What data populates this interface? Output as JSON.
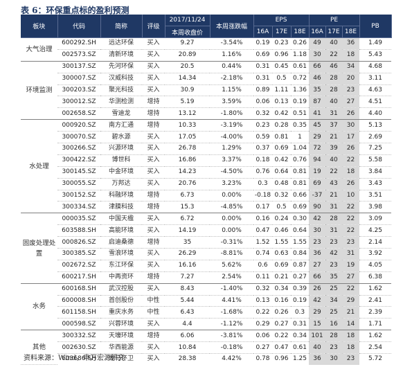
{
  "title": "表 6：环保重点标的盈利预测",
  "source": "资料来源：Wind，申万宏源研究",
  "header": {
    "sector": "板块",
    "code": "代码",
    "name": "简称",
    "rating": "评级",
    "date": "2017/11/24",
    "close": "本周收盘价",
    "weekly": "本周涨跌幅",
    "eps": "EPS",
    "pe": "PE",
    "pb": "PB",
    "y16": "16A",
    "y17": "17E",
    "y18": "18E"
  },
  "groups": [
    {
      "sector": "大气治理",
      "rows": [
        {
          "code": "600292.SH",
          "name": "远达环保",
          "rating": "买入",
          "close": "9.27",
          "chg": "-3.54%",
          "eps16": "0.19",
          "eps17": "0.23",
          "eps18": "0.26",
          "pe16": "49",
          "pe17": "40",
          "pe18": "36",
          "pb": "1.49"
        },
        {
          "code": "002573.SZ",
          "name": "清新环境",
          "rating": "买入",
          "close": "20.89",
          "chg": "1.16%",
          "eps16": "0.69",
          "eps17": "0.96",
          "eps18": "1.18",
          "pe16": "30",
          "pe17": "22",
          "pe18": "18",
          "pb": "5.43"
        }
      ]
    },
    {
      "sector": "环境监测",
      "rows": [
        {
          "code": "300137.SZ",
          "name": "先河环保",
          "rating": "买入",
          "close": "20.5",
          "chg": "0.44%",
          "eps16": "0.31",
          "eps17": "0.45",
          "eps18": "0.61",
          "pe16": "66",
          "pe17": "46",
          "pe18": "34",
          "pb": "4.68"
        },
        {
          "code": "300007.SZ",
          "name": "汉威科技",
          "rating": "买入",
          "close": "14.34",
          "chg": "-2.18%",
          "eps16": "0.31",
          "eps17": "0.5",
          "eps18": "0.72",
          "pe16": "46",
          "pe17": "28",
          "pe18": "20",
          "pb": "3.11"
        },
        {
          "code": "300203.SZ",
          "name": "聚光科技",
          "rating": "买入",
          "close": "30.9",
          "chg": "1.15%",
          "eps16": "0.89",
          "eps17": "1.11",
          "eps18": "1.36",
          "pe16": "35",
          "pe17": "28",
          "pe18": "23",
          "pb": "4.63"
        },
        {
          "code": "300012.SZ",
          "name": "华测检测",
          "rating": "增持",
          "close": "5.19",
          "chg": "3.59%",
          "eps16": "0.06",
          "eps17": "0.13",
          "eps18": "0.19",
          "pe16": "87",
          "pe17": "40",
          "pe18": "27",
          "pb": "4.51"
        },
        {
          "code": "002658.SZ",
          "name": "雪迪龙",
          "rating": "增持",
          "close": "13.12",
          "chg": "-1.80%",
          "eps16": "0.32",
          "eps17": "0.42",
          "eps18": "0.51",
          "pe16": "41",
          "pe17": "31",
          "pe18": "26",
          "pb": "4.40"
        }
      ]
    },
    {
      "sector": "水处理",
      "rows": [
        {
          "code": "000920.SZ",
          "name": "南方汇通",
          "rating": "增持",
          "close": "10.33",
          "chg": "-3.19%",
          "eps16": "0.23",
          "eps17": "0.28",
          "eps18": "0.35",
          "pe16": "45",
          "pe17": "37",
          "pe18": "30",
          "pb": "5.13"
        },
        {
          "code": "300070.SZ",
          "name": "碧水源",
          "rating": "买入",
          "close": "17.05",
          "chg": "-4.00%",
          "eps16": "0.59",
          "eps17": "0.81",
          "eps18": "1",
          "pe16": "29",
          "pe17": "21",
          "pe18": "17",
          "pb": "2.69"
        },
        {
          "code": "300266.SZ",
          "name": "兴源环境",
          "rating": "买入",
          "close": "26.78",
          "chg": "1.29%",
          "eps16": "0.37",
          "eps17": "0.69",
          "eps18": "1.04",
          "pe16": "72",
          "pe17": "39",
          "pe18": "26",
          "pb": "7.25"
        },
        {
          "code": "300422.SZ",
          "name": "博世科",
          "rating": "买入",
          "close": "16.86",
          "chg": "3.37%",
          "eps16": "0.18",
          "eps17": "0.42",
          "eps18": "0.76",
          "pe16": "94",
          "pe17": "40",
          "pe18": "22",
          "pb": "5.58"
        },
        {
          "code": "300145.SZ",
          "name": "中金环境",
          "rating": "买入",
          "close": "14.23",
          "chg": "-4.50%",
          "eps16": "0.76",
          "eps17": "0.64",
          "eps18": "0.81",
          "pe16": "19",
          "pe17": "22",
          "pe18": "18",
          "pb": "3.84"
        },
        {
          "code": "300055.SZ",
          "name": "万邦达",
          "rating": "买入",
          "close": "20.76",
          "chg": "3.23%",
          "eps16": "0.3",
          "eps17": "0.48",
          "eps18": "0.81",
          "pe16": "69",
          "pe17": "43",
          "pe18": "26",
          "pb": "3.43"
        },
        {
          "code": "300152.SZ",
          "name": "科融环境",
          "rating": "增持",
          "close": "6.73",
          "chg": "0.00%",
          "eps16": "-0.18",
          "eps17": "0.32",
          "eps18": "0.66",
          "pe16": "-37",
          "pe17": "21",
          "pe18": "10",
          "pb": "3.51"
        },
        {
          "code": "300334.SZ",
          "name": "津膜科技",
          "rating": "增持",
          "close": "15.3",
          "chg": "-4.85%",
          "eps16": "0.17",
          "eps17": "0.5",
          "eps18": "0.69",
          "pe16": "90",
          "pe17": "31",
          "pe18": "22",
          "pb": "3.98"
        }
      ]
    },
    {
      "sector": "固废处理处置",
      "rows": [
        {
          "code": "000035.SZ",
          "name": "中国天楹",
          "rating": "买入",
          "close": "6.72",
          "chg": "0.00%",
          "eps16": "0.16",
          "eps17": "0.24",
          "eps18": "0.30",
          "pe16": "42",
          "pe17": "28",
          "pe18": "22",
          "pb": "3.09"
        },
        {
          "code": "603588.SH",
          "name": "高能环境",
          "rating": "买入",
          "close": "14.19",
          "chg": "0.00%",
          "eps16": "0.47",
          "eps17": "0.46",
          "eps18": "0.64",
          "pe16": "30",
          "pe17": "31",
          "pe18": "22",
          "pb": "4.25"
        },
        {
          "code": "000826.SZ",
          "name": "启迪桑德",
          "rating": "增持",
          "close": "35",
          "chg": "-0.31%",
          "eps16": "1.52",
          "eps17": "1.55",
          "eps18": "1.55",
          "pe16": "23",
          "pe17": "23",
          "pe18": "23",
          "pb": "2.14"
        },
        {
          "code": "300385.SZ",
          "name": "雪浪环境",
          "rating": "买入",
          "close": "26.29",
          "chg": "-8.81%",
          "eps16": "0.74",
          "eps17": "0.63",
          "eps18": "0.84",
          "pe16": "36",
          "pe17": "42",
          "pe18": "31",
          "pb": "3.92"
        },
        {
          "code": "002672.SZ",
          "name": "东江环保",
          "rating": "买入",
          "close": "16.16",
          "chg": "5.62%",
          "eps16": "0.6",
          "eps17": "0.69",
          "eps18": "0.87",
          "pe16": "27",
          "pe17": "23",
          "pe18": "19",
          "pb": "4.05"
        },
        {
          "code": "600217.SH",
          "name": "中再资环",
          "rating": "增持",
          "close": "7.27",
          "chg": "2.54%",
          "eps16": "0.11",
          "eps17": "0.21",
          "eps18": "0.27",
          "pe16": "66",
          "pe17": "35",
          "pe18": "27",
          "pb": "6.38"
        }
      ]
    },
    {
      "sector": "水务",
      "rows": [
        {
          "code": "600168.SH",
          "name": "武汉控股",
          "rating": "买入",
          "close": "8.43",
          "chg": "-1.40%",
          "eps16": "0.32",
          "eps17": "0.34",
          "eps18": "0.39",
          "pe16": "26",
          "pe17": "25",
          "pe18": "22",
          "pb": "1.62"
        },
        {
          "code": "600008.SH",
          "name": "首创股份",
          "rating": "中性",
          "close": "5.44",
          "chg": "4.41%",
          "eps16": "0.13",
          "eps17": "0.16",
          "eps18": "0.19",
          "pe16": "42",
          "pe17": "34",
          "pe18": "29",
          "pb": "2.41"
        },
        {
          "code": "601158.SH",
          "name": "重庆水务",
          "rating": "中性",
          "close": "6.43",
          "chg": "-1.68%",
          "eps16": "0.22",
          "eps17": "0.26",
          "eps18": "0.3",
          "pe16": "29",
          "pe17": "25",
          "pe18": "21",
          "pb": "2.39"
        },
        {
          "code": "000598.SZ",
          "name": "兴蓉环境",
          "rating": "买入",
          "close": "4.4",
          "chg": "-1.12%",
          "eps16": "0.29",
          "eps17": "0.27",
          "eps18": "0.31",
          "pe16": "15",
          "pe17": "16",
          "pe18": "14",
          "pb": "1.71"
        }
      ]
    },
    {
      "sector": "其他",
      "rows": [
        {
          "code": "300332.SZ",
          "name": "天壕环境",
          "rating": "增持",
          "close": "6.06",
          "chg": "-3.81%",
          "eps16": "0.06",
          "eps17": "0.22",
          "eps18": "0.34",
          "pe16": "101",
          "pe17": "28",
          "pe18": "18",
          "pb": "1.62"
        },
        {
          "code": "002630.SZ",
          "name": "华西能源",
          "rating": "买入",
          "close": "10.84",
          "chg": "-0.18%",
          "eps16": "0.27",
          "eps17": "0.47",
          "eps18": "0.61",
          "pe16": "40",
          "pe17": "23",
          "pe18": "18",
          "pb": "2.54"
        },
        {
          "code": "603686.SH",
          "name": "龙马环卫",
          "rating": "买入",
          "close": "28.38",
          "chg": "4.42%",
          "eps16": "0.78",
          "eps17": "0.96",
          "eps18": "1.25",
          "pe16": "36",
          "pe17": "30",
          "pe18": "23",
          "pb": "5.72"
        }
      ]
    }
  ]
}
